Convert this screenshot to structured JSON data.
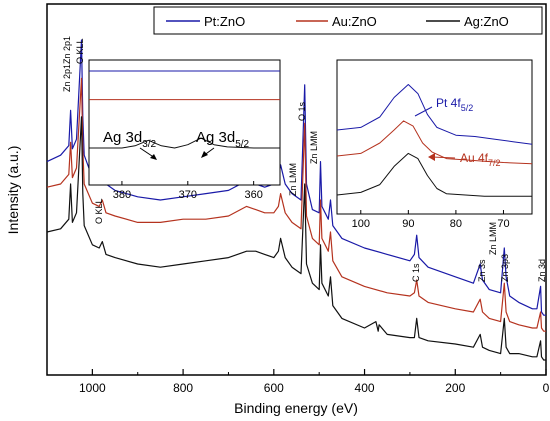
{
  "chart_data": {
    "type": "line",
    "xlabel": "Binding energy (eV)",
    "ylabel": "Intensity (a.u.)",
    "x_reversed": true,
    "xlim": [
      1100,
      0
    ],
    "xticks": [
      "1000",
      "800",
      "600",
      "400",
      "200",
      "0"
    ],
    "xtick_values": [
      1000,
      800,
      600,
      400,
      200,
      0
    ],
    "legend_position": "top",
    "series": [
      {
        "name": "Pt:ZnO",
        "color": "#1a1aa8",
        "x": [
          1100,
          1070,
          1052,
          1048,
          1044,
          1035,
          1024,
          1021,
          1018,
          1000,
          985,
          978,
          970,
          950,
          900,
          850,
          800,
          750,
          700,
          660,
          640,
          620,
          600,
          590,
          585,
          575,
          560,
          540,
          532,
          528,
          515,
          500,
          497,
          494,
          480,
          475,
          470,
          450,
          400,
          350,
          300,
          290,
          285,
          280,
          260,
          200,
          160,
          145,
          140,
          125,
          100,
          92,
          88,
          80,
          60,
          30,
          20,
          12,
          10,
          5,
          0
        ],
        "y": [
          0.62,
          0.64,
          0.67,
          0.78,
          0.66,
          0.69,
          1.0,
          0.76,
          0.64,
          0.57,
          0.57,
          0.6,
          0.55,
          0.53,
          0.51,
          0.5,
          0.51,
          0.52,
          0.53,
          0.56,
          0.55,
          0.54,
          0.55,
          0.57,
          0.61,
          0.55,
          0.52,
          0.5,
          0.86,
          0.55,
          0.47,
          0.46,
          0.62,
          0.48,
          0.44,
          0.5,
          0.42,
          0.38,
          0.35,
          0.33,
          0.31,
          0.33,
          0.39,
          0.32,
          0.29,
          0.26,
          0.24,
          0.3,
          0.25,
          0.22,
          0.21,
          0.35,
          0.26,
          0.2,
          0.18,
          0.16,
          0.16,
          0.23,
          0.15,
          0.14,
          0.14
        ]
      },
      {
        "name": "Au:ZnO",
        "color": "#b5331f",
        "x": [
          1100,
          1070,
          1052,
          1048,
          1044,
          1035,
          1024,
          1021,
          1018,
          1000,
          985,
          978,
          970,
          950,
          900,
          850,
          800,
          750,
          700,
          660,
          640,
          620,
          600,
          590,
          585,
          575,
          560,
          540,
          532,
          528,
          515,
          500,
          497,
          494,
          480,
          475,
          470,
          450,
          400,
          350,
          300,
          290,
          285,
          280,
          260,
          200,
          160,
          145,
          140,
          125,
          100,
          92,
          88,
          80,
          60,
          30,
          20,
          12,
          10,
          5,
          0
        ],
        "y": [
          0.54,
          0.55,
          0.58,
          0.68,
          0.57,
          0.6,
          0.88,
          0.66,
          0.55,
          0.49,
          0.48,
          0.5,
          0.46,
          0.45,
          0.43,
          0.43,
          0.44,
          0.44,
          0.45,
          0.48,
          0.47,
          0.46,
          0.46,
          0.48,
          0.52,
          0.46,
          0.43,
          0.41,
          0.74,
          0.45,
          0.38,
          0.36,
          0.5,
          0.38,
          0.34,
          0.4,
          0.31,
          0.26,
          0.23,
          0.21,
          0.2,
          0.21,
          0.25,
          0.2,
          0.18,
          0.16,
          0.15,
          0.19,
          0.15,
          0.13,
          0.12,
          0.24,
          0.15,
          0.12,
          0.11,
          0.1,
          0.1,
          0.15,
          0.1,
          0.09,
          0.09
        ]
      },
      {
        "name": "Ag:ZnO",
        "color": "#111111",
        "x": [
          1100,
          1070,
          1052,
          1048,
          1044,
          1035,
          1024,
          1021,
          1018,
          1000,
          985,
          978,
          970,
          950,
          900,
          850,
          800,
          750,
          700,
          660,
          640,
          620,
          600,
          590,
          585,
          575,
          560,
          540,
          532,
          528,
          515,
          500,
          497,
          494,
          480,
          475,
          470,
          450,
          400,
          375,
          370,
          368,
          350,
          300,
          290,
          285,
          280,
          260,
          200,
          160,
          145,
          140,
          125,
          100,
          92,
          88,
          80,
          60,
          30,
          20,
          12,
          10,
          5,
          0
        ],
        "y": [
          0.4,
          0.41,
          0.44,
          0.55,
          0.43,
          0.46,
          0.76,
          0.52,
          0.42,
          0.36,
          0.35,
          0.37,
          0.33,
          0.32,
          0.3,
          0.29,
          0.3,
          0.31,
          0.32,
          0.34,
          0.34,
          0.33,
          0.32,
          0.34,
          0.38,
          0.32,
          0.29,
          0.27,
          0.55,
          0.3,
          0.24,
          0.22,
          0.36,
          0.24,
          0.2,
          0.26,
          0.17,
          0.13,
          0.1,
          0.12,
          0.09,
          0.11,
          0.08,
          0.07,
          0.07,
          0.13,
          0.07,
          0.06,
          0.05,
          0.04,
          0.08,
          0.04,
          0.03,
          0.02,
          0.13,
          0.04,
          0.02,
          0.02,
          0.01,
          0.01,
          0.06,
          0.01,
          0.0,
          0.0
        ]
      }
    ],
    "annotations": [
      "Zn 2p1",
      "O KLL",
      "Zn 2p1",
      "O KLL",
      "Zn LMM",
      "O 1s",
      "Zn LMM",
      "Zn LMM",
      "C 1s",
      "Zn 3s",
      "Zn 3p3",
      "Zn 3d"
    ],
    "insets": [
      {
        "type": "line",
        "xlim": [
          385,
          356
        ],
        "xticks": [
          "380",
          "370",
          "360"
        ],
        "xtick_values": [
          380,
          370,
          360
        ],
        "labels": [
          {
            "base": "Ag 3d",
            "sub": "3/2",
            "peak": 376
          },
          {
            "base": "Ag 3d",
            "sub": "5/2",
            "peak": 368
          }
        ],
        "series": [
          {
            "name": "Pt:ZnO",
            "color": "#1a1aa8",
            "x": [
              385,
              375,
              365,
              356
            ],
            "y": [
              0.9,
              0.9,
              0.9,
              0.9
            ]
          },
          {
            "name": "Au:ZnO",
            "color": "#b5331f",
            "x": [
              385,
              375,
              365,
              356
            ],
            "y": [
              0.64,
              0.64,
              0.64,
              0.64
            ]
          },
          {
            "name": "Ag:ZnO",
            "color": "#111111",
            "x": [
              385,
              380,
              378,
              376,
              374,
              372,
              370,
              368,
              366,
              364,
              360,
              356
            ],
            "y": [
              0.2,
              0.2,
              0.22,
              0.27,
              0.22,
              0.2,
              0.23,
              0.29,
              0.23,
              0.21,
              0.2,
              0.2
            ]
          }
        ]
      },
      {
        "type": "line",
        "xlim": [
          105,
          64
        ],
        "xticks": [
          "100",
          "90",
          "80",
          "70"
        ],
        "xtick_values": [
          100,
          90,
          80,
          70
        ],
        "labels": [
          {
            "base": "Pt 4f",
            "sub": "5/2",
            "color": "#1a1aa8"
          },
          {
            "base": "Au 4f",
            "sub": "7/2",
            "color": "#b5331f"
          }
        ],
        "series": [
          {
            "name": "Pt:ZnO",
            "color": "#1a1aa8",
            "x": [
              105,
              100,
              96,
              93,
              90,
              88,
              86,
              84,
              80,
              76,
              72,
              68,
              64
            ],
            "y": [
              0.6,
              0.62,
              0.7,
              0.85,
              0.95,
              0.88,
              0.72,
              0.62,
              0.56,
              0.55,
              0.53,
              0.51,
              0.49
            ]
          },
          {
            "name": "Au:ZnO",
            "color": "#b5331f",
            "x": [
              105,
              100,
              96,
              93,
              91,
              89,
              87,
              85,
              82,
              78,
              74,
              70,
              64
            ],
            "y": [
              0.4,
              0.42,
              0.5,
              0.6,
              0.67,
              0.63,
              0.5,
              0.43,
              0.38,
              0.37,
              0.36,
              0.35,
              0.34
            ]
          },
          {
            "name": "Ag:ZnO",
            "color": "#111111",
            "x": [
              105,
              100,
              96,
              93,
              90,
              88,
              86,
              84,
              82,
              78,
              74,
              70,
              64
            ],
            "y": [
              0.1,
              0.12,
              0.18,
              0.32,
              0.42,
              0.38,
              0.25,
              0.15,
              0.11,
              0.1,
              0.09,
              0.09,
              0.09
            ]
          }
        ]
      }
    ]
  }
}
